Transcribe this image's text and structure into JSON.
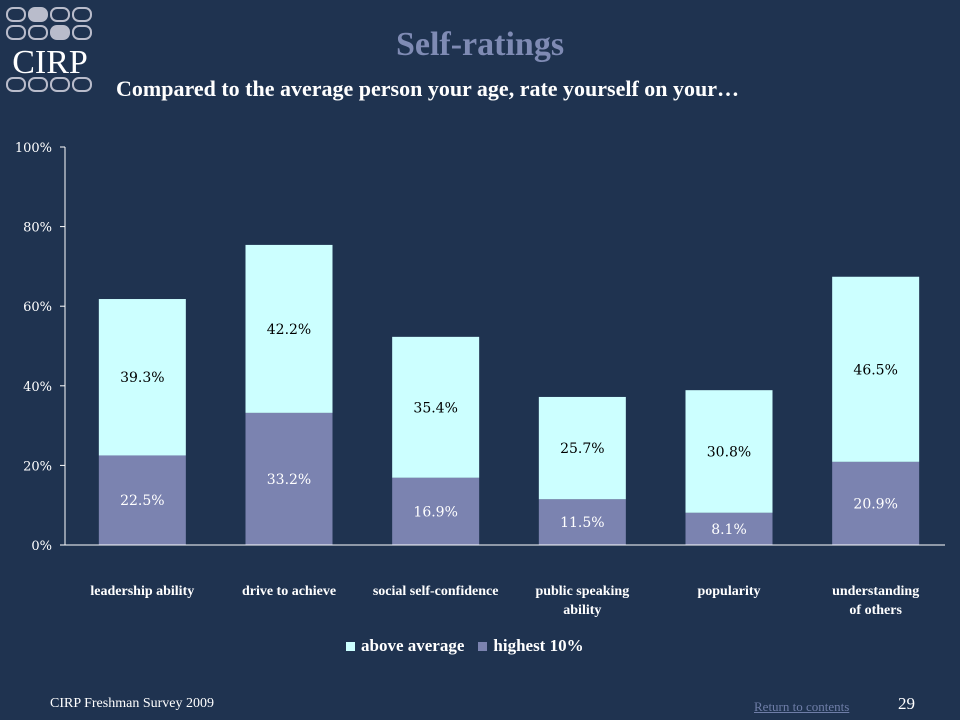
{
  "title": "Self-ratings",
  "subtitle": "Compared to the average person your age, rate yourself on your…",
  "logo": {
    "text": "CIRP",
    "icon": "cirp-logo"
  },
  "colors": {
    "background": "#1f3350",
    "above_average": "#ccffff",
    "highest_10": "#7b83b0",
    "axis": "#ffffff",
    "title": "#7f8bb4"
  },
  "chart_data": {
    "type": "bar",
    "stacked": true,
    "categories": [
      "leadership ability",
      "drive to achieve",
      "social self-confidence",
      "public speaking ability",
      "popularity",
      "understanding of others"
    ],
    "category_lines": [
      [
        "leadership ability"
      ],
      [
        "drive to achieve"
      ],
      [
        "social self-confidence"
      ],
      [
        "public speaking",
        "ability"
      ],
      [
        "popularity"
      ],
      [
        "understanding",
        "of  others"
      ]
    ],
    "series": [
      {
        "name": "highest 10%",
        "values": [
          22.5,
          33.2,
          16.9,
          11.5,
          8.1,
          20.9
        ],
        "labels": [
          "22.5%",
          "33.2%",
          "16.9%",
          "11.5%",
          "8.1%",
          "20.9%"
        ]
      },
      {
        "name": "above average",
        "values": [
          39.3,
          42.2,
          35.4,
          25.7,
          30.8,
          46.5
        ],
        "labels": [
          "39.3%",
          "42.2%",
          "35.4%",
          "25.7%",
          "30.8%",
          "46.5%"
        ]
      }
    ],
    "ylim": [
      0,
      100
    ],
    "yticks": [
      "0%",
      "20%",
      "40%",
      "60%",
      "80%",
      "100%"
    ],
    "legend": [
      "above average",
      "highest 10%"
    ],
    "legend_position": "bottom"
  },
  "footer": {
    "source": "CIRP Freshman Survey 2009",
    "link": "Return to contents",
    "page": "29"
  }
}
